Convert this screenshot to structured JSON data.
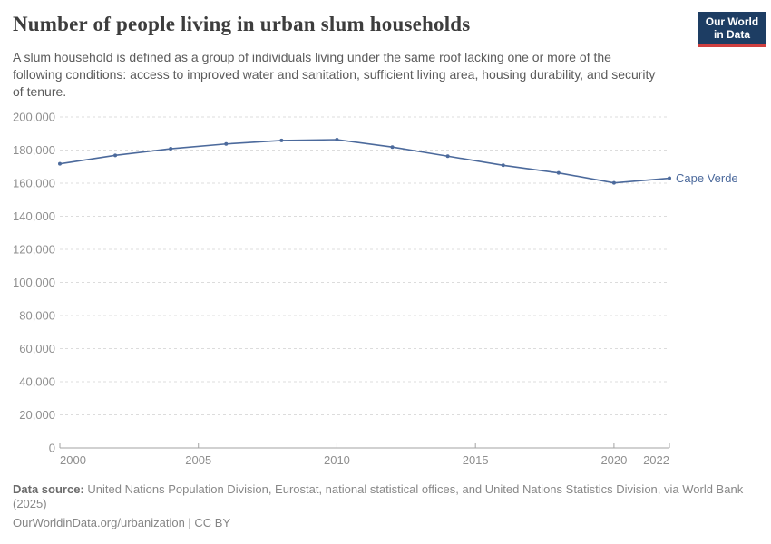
{
  "header": {
    "title": "Number of people living in urban slum households",
    "subtitle": "A slum household is defined as a group of individuals living under the same roof lacking one or more of the following conditions: access to improved water and sanitation, sufficient living area, housing durability, and security of tenure.",
    "logo": {
      "line1": "Our World",
      "line2": "in Data",
      "bg_color": "#1d3d63",
      "accent_color": "#cf3f3f"
    }
  },
  "chart_data": {
    "type": "line",
    "title": "Number of people living in urban slum households",
    "xlabel": "",
    "ylabel": "",
    "xlim": [
      2000,
      2022
    ],
    "ylim": [
      0,
      200000
    ],
    "grid": "horizontal-dashed",
    "legend_position": "end-of-line-label",
    "x_ticks": [
      2000,
      2005,
      2010,
      2015,
      2020,
      2022
    ],
    "y_ticks": [
      0,
      20000,
      40000,
      60000,
      80000,
      100000,
      120000,
      140000,
      160000,
      180000,
      200000
    ],
    "series": [
      {
        "name": "Cape Verde",
        "color": "#4c6a9c",
        "x": [
          2000,
          2002,
          2004,
          2006,
          2008,
          2010,
          2012,
          2014,
          2016,
          2018,
          2020,
          2022
        ],
        "values": [
          171700,
          176800,
          180800,
          183700,
          185800,
          186300,
          181800,
          176300,
          170800,
          166200,
          160200,
          163000
        ]
      }
    ]
  },
  "footer": {
    "datasource_label": "Data source:",
    "datasource_text": "United Nations Population Division, Eurostat, national statistical offices, and United Nations Statistics Division, via World Bank (2025)",
    "link_text": "OurWorldinData.org/urbanization | CC BY"
  }
}
